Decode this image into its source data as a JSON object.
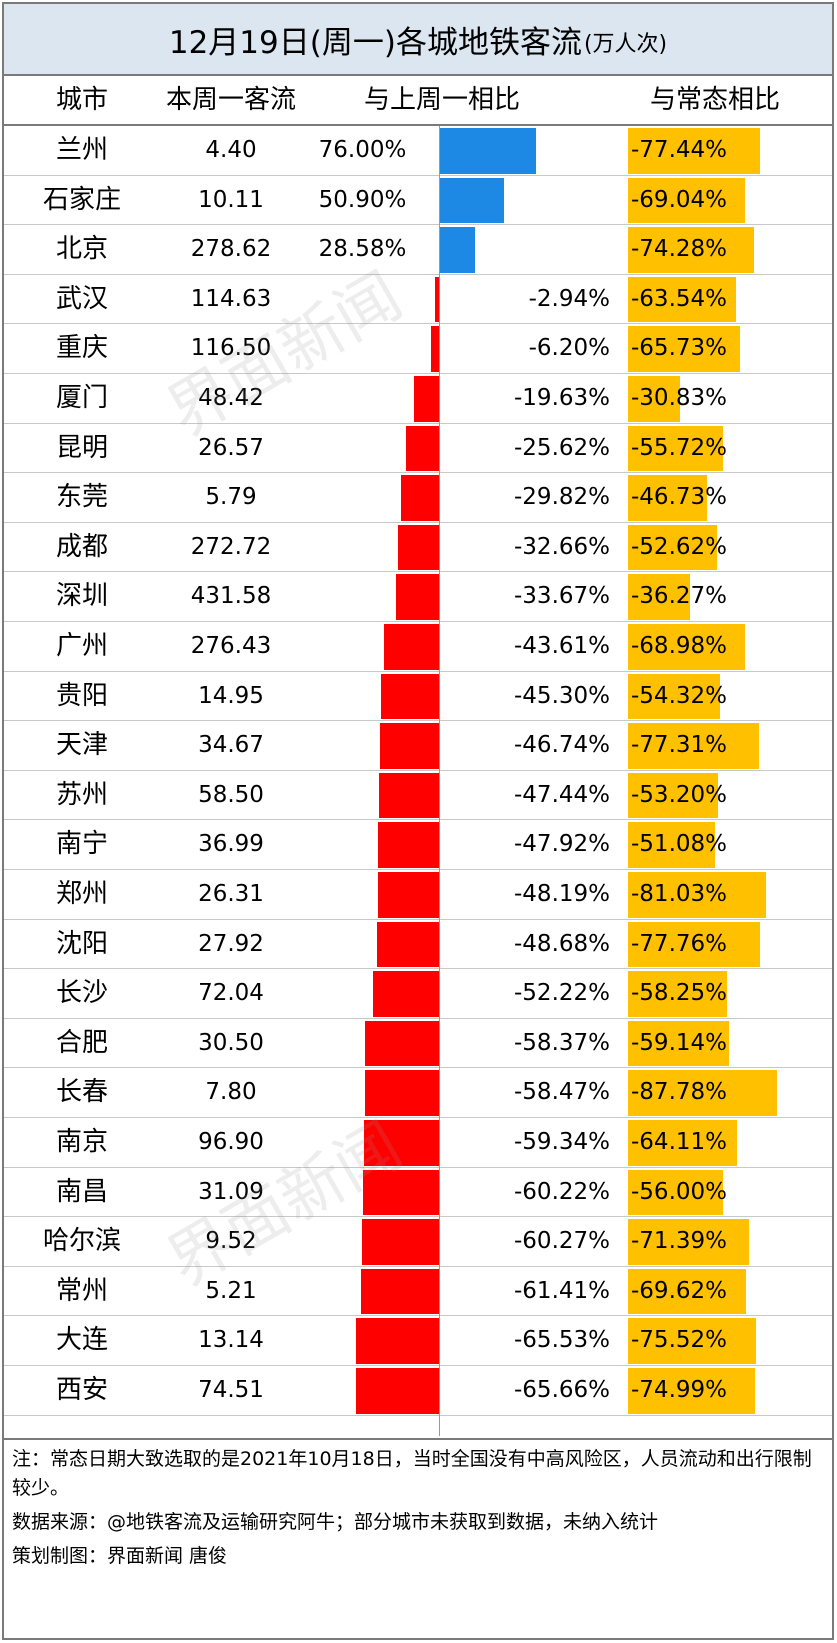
{
  "title": "12月19日(周一)各城地铁客流",
  "title_unit": "(万人次)",
  "headers": {
    "city": "城市",
    "flow": "本周一客流",
    "wow": "与上周一相比",
    "normal": "与常态相比"
  },
  "colors": {
    "positive": "#1e88e5",
    "negative": "#ff0000",
    "normal": "#ffc000",
    "title_bg": "#dce6f1"
  },
  "chart_data": {
    "type": "table",
    "columns": [
      "城市",
      "本周一客流",
      "与上周一相比",
      "与常态相比"
    ],
    "rows": [
      {
        "city": "兰州",
        "flow": "4.40",
        "wow": 76.0,
        "wow_label": "76.00%",
        "normal": -77.44,
        "normal_label": "-77.44%"
      },
      {
        "city": "石家庄",
        "flow": "10.11",
        "wow": 50.9,
        "wow_label": "50.90%",
        "normal": -69.04,
        "normal_label": "-69.04%"
      },
      {
        "city": "北京",
        "flow": "278.62",
        "wow": 28.58,
        "wow_label": "28.58%",
        "normal": -74.28,
        "normal_label": "-74.28%"
      },
      {
        "city": "武汉",
        "flow": "114.63",
        "wow": -2.94,
        "wow_label": "-2.94%",
        "normal": -63.54,
        "normal_label": "-63.54%"
      },
      {
        "city": "重庆",
        "flow": "116.50",
        "wow": -6.2,
        "wow_label": "-6.20%",
        "normal": -65.73,
        "normal_label": "-65.73%"
      },
      {
        "city": "厦门",
        "flow": "48.42",
        "wow": -19.63,
        "wow_label": "-19.63%",
        "normal": -30.83,
        "normal_label": "-30.83%"
      },
      {
        "city": "昆明",
        "flow": "26.57",
        "wow": -25.62,
        "wow_label": "-25.62%",
        "normal": -55.72,
        "normal_label": "-55.72%"
      },
      {
        "city": "东莞",
        "flow": "5.79",
        "wow": -29.82,
        "wow_label": "-29.82%",
        "normal": -46.73,
        "normal_label": "-46.73%"
      },
      {
        "city": "成都",
        "flow": "272.72",
        "wow": -32.66,
        "wow_label": "-32.66%",
        "normal": -52.62,
        "normal_label": "-52.62%"
      },
      {
        "city": "深圳",
        "flow": "431.58",
        "wow": -33.67,
        "wow_label": "-33.67%",
        "normal": -36.27,
        "normal_label": "-36.27%"
      },
      {
        "city": "广州",
        "flow": "276.43",
        "wow": -43.61,
        "wow_label": "-43.61%",
        "normal": -68.98,
        "normal_label": "-68.98%"
      },
      {
        "city": "贵阳",
        "flow": "14.95",
        "wow": -45.3,
        "wow_label": "-45.30%",
        "normal": -54.32,
        "normal_label": "-54.32%"
      },
      {
        "city": "天津",
        "flow": "34.67",
        "wow": -46.74,
        "wow_label": "-46.74%",
        "normal": -77.31,
        "normal_label": "-77.31%"
      },
      {
        "city": "苏州",
        "flow": "58.50",
        "wow": -47.44,
        "wow_label": "-47.44%",
        "normal": -53.2,
        "normal_label": "-53.20%"
      },
      {
        "city": "南宁",
        "flow": "36.99",
        "wow": -47.92,
        "wow_label": "-47.92%",
        "normal": -51.08,
        "normal_label": "-51.08%"
      },
      {
        "city": "郑州",
        "flow": "26.31",
        "wow": -48.19,
        "wow_label": "-48.19%",
        "normal": -81.03,
        "normal_label": "-81.03%"
      },
      {
        "city": "沈阳",
        "flow": "27.92",
        "wow": -48.68,
        "wow_label": "-48.68%",
        "normal": -77.76,
        "normal_label": "-77.76%"
      },
      {
        "city": "长沙",
        "flow": "72.04",
        "wow": -52.22,
        "wow_label": "-52.22%",
        "normal": -58.25,
        "normal_label": "-58.25%"
      },
      {
        "city": "合肥",
        "flow": "30.50",
        "wow": -58.37,
        "wow_label": "-58.37%",
        "normal": -59.14,
        "normal_label": "-59.14%"
      },
      {
        "city": "长春",
        "flow": "7.80",
        "wow": -58.47,
        "wow_label": "-58.47%",
        "normal": -87.78,
        "normal_label": "-87.78%"
      },
      {
        "city": "南京",
        "flow": "96.90",
        "wow": -59.34,
        "wow_label": "-59.34%",
        "normal": -64.11,
        "normal_label": "-64.11%"
      },
      {
        "city": "南昌",
        "flow": "31.09",
        "wow": -60.22,
        "wow_label": "-60.22%",
        "normal": -56.0,
        "normal_label": "-56.00%"
      },
      {
        "city": "哈尔滨",
        "flow": "9.52",
        "wow": -60.27,
        "wow_label": "-60.27%",
        "normal": -71.39,
        "normal_label": "-71.39%"
      },
      {
        "city": "常州",
        "flow": "5.21",
        "wow": -61.41,
        "wow_label": "-61.41%",
        "normal": -69.62,
        "normal_label": "-69.62%"
      },
      {
        "city": "大连",
        "flow": "13.14",
        "wow": -65.53,
        "wow_label": "-65.53%",
        "normal": -75.52,
        "normal_label": "-75.52%"
      },
      {
        "city": "西安",
        "flow": "74.51",
        "wow": -65.66,
        "wow_label": "-65.66%",
        "normal": -74.99,
        "normal_label": "-74.99%"
      }
    ]
  },
  "notes": {
    "note": "注：常态日期大致选取的是2021年10月18日，当时全国没有中高风险区，人员流动和出行限制较少。",
    "source": "数据来源：@地铁客流及运输研究阿牛；部分城市未获取到数据，未纳入统计",
    "credit": "策划制图：界面新闻 唐俊"
  },
  "watermark": "界面新闻"
}
